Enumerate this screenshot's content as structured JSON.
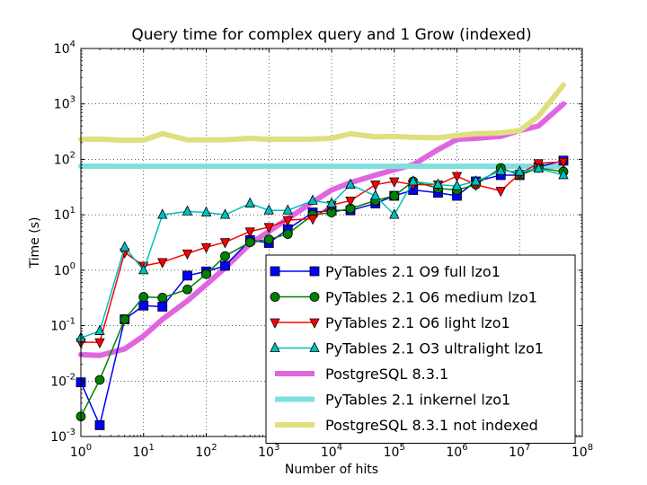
{
  "chart_data": {
    "type": "line",
    "title": "Query time for complex query and 1 Grow (indexed)",
    "xlabel": "Number of hits",
    "ylabel": "Time (s)",
    "xscale": "log",
    "yscale": "log",
    "xlim": [
      1,
      100000000
    ],
    "ylim": [
      0.001,
      10000
    ],
    "grid": true,
    "legend_position": "lower-right",
    "x_ticks": [
      {
        "value": 1,
        "base": "10",
        "exp": "0"
      },
      {
        "value": 10,
        "base": "10",
        "exp": "1"
      },
      {
        "value": 100,
        "base": "10",
        "exp": "2"
      },
      {
        "value": 1000,
        "base": "10",
        "exp": "3"
      },
      {
        "value": 10000,
        "base": "10",
        "exp": "4"
      },
      {
        "value": 100000,
        "base": "10",
        "exp": "5"
      },
      {
        "value": 1000000,
        "base": "10",
        "exp": "6"
      },
      {
        "value": 10000000,
        "base": "10",
        "exp": "7"
      },
      {
        "value": 100000000,
        "base": "10",
        "exp": "8"
      }
    ],
    "y_ticks": [
      {
        "value": 0.001,
        "base": "10",
        "exp": "-3"
      },
      {
        "value": 0.01,
        "base": "10",
        "exp": "-2"
      },
      {
        "value": 0.1,
        "base": "10",
        "exp": "-1"
      },
      {
        "value": 1,
        "base": "10",
        "exp": "0"
      },
      {
        "value": 10,
        "base": "10",
        "exp": "1"
      },
      {
        "value": 100,
        "base": "10",
        "exp": "2"
      },
      {
        "value": 1000,
        "base": "10",
        "exp": "3"
      },
      {
        "value": 10000,
        "base": "10",
        "exp": "4"
      }
    ],
    "series": [
      {
        "name": "PyTables 2.1 O9 full lzo1",
        "color": "#0000ff",
        "marker": "square",
        "line_width": 1.5,
        "x": [
          1,
          2,
          5,
          10,
          20,
          50,
          100,
          200,
          500,
          1000,
          2000,
          5000,
          10000,
          20000,
          50000,
          100000,
          200000,
          500000,
          1000000,
          2000000,
          5000000,
          10000000,
          20000000,
          50000000
        ],
        "y": [
          0.0095,
          0.0016,
          0.13,
          0.23,
          0.22,
          0.8,
          0.95,
          1.2,
          3.5,
          3.1,
          5.5,
          11,
          12,
          12,
          16,
          22,
          28,
          25,
          22,
          40,
          52,
          52,
          73,
          95
        ]
      },
      {
        "name": "PyTables 2.1 O6 medium lzo1",
        "color": "#008000",
        "marker": "circle",
        "line_width": 1.5,
        "x": [
          1,
          2,
          5,
          10,
          20,
          50,
          100,
          200,
          500,
          1000,
          2000,
          5000,
          10000,
          20000,
          50000,
          100000,
          200000,
          500000,
          1000000,
          2000000,
          5000000,
          10000000,
          20000000,
          50000000
        ],
        "y": [
          0.0023,
          0.0105,
          0.13,
          0.33,
          0.32,
          0.45,
          0.85,
          1.8,
          3.2,
          3.6,
          4.5,
          10,
          11,
          13,
          18,
          22,
          40,
          30,
          28,
          35,
          70,
          52,
          70,
          60
        ]
      },
      {
        "name": "PyTables 2.1 O6 light lzo1",
        "color": "#ff0000",
        "marker": "triangle-down",
        "line_width": 1.5,
        "x": [
          1,
          2,
          5,
          10,
          20,
          50,
          100,
          200,
          500,
          1000,
          2000,
          5000,
          10000,
          20000,
          50000,
          100000,
          200000,
          500000,
          1000000,
          2000000,
          5000000,
          10000000,
          20000000,
          50000000
        ],
        "y": [
          0.05,
          0.05,
          2.1,
          1.2,
          1.4,
          2.0,
          2.6,
          3.2,
          5.0,
          6.0,
          8.0,
          8.5,
          15,
          18,
          35,
          40,
          35,
          35,
          50,
          35,
          27,
          55,
          85,
          90
        ]
      },
      {
        "name": "PyTables 2.1 O3 ultralight lzo1",
        "color": "#00bfbf",
        "marker": "triangle-up",
        "line_width": 1.5,
        "x": [
          1,
          2,
          5,
          10,
          20,
          50,
          100,
          200,
          500,
          1000,
          2000,
          5000,
          10000,
          20000,
          50000,
          100000,
          200000,
          500000,
          1000000,
          2000000,
          5000000,
          10000000,
          20000000,
          50000000
        ],
        "y": [
          0.06,
          0.08,
          2.6,
          1.0,
          10,
          11.5,
          11,
          10,
          16,
          12,
          12,
          18,
          16,
          35,
          22,
          10,
          40,
          35,
          33,
          40,
          62,
          60,
          68,
          52
        ]
      },
      {
        "name": "PostgreSQL 8.3.1",
        "color": "#e066e0",
        "marker": "none",
        "line_width": 6,
        "x": [
          1,
          2,
          5,
          10,
          20,
          50,
          100,
          200,
          500,
          1000,
          2000,
          5000,
          10000,
          20000,
          50000,
          100000,
          200000,
          500000,
          1000000,
          2000000,
          5000000,
          10000000,
          20000000,
          50000000
        ],
        "y": [
          0.03,
          0.029,
          0.038,
          0.065,
          0.13,
          0.28,
          0.55,
          1.1,
          3.0,
          5.0,
          8.5,
          17,
          28,
          38,
          52,
          65,
          80,
          150,
          230,
          240,
          260,
          330,
          400,
          1000
        ]
      },
      {
        "name": "PyTables 2.1 inkernel lzo1",
        "color": "#7fdfdf",
        "marker": "none",
        "line_width": 6,
        "x": [
          1,
          50000000
        ],
        "y": [
          75,
          75
        ]
      },
      {
        "name": "PostgreSQL 8.3.1 not indexed",
        "color": "#dfdf7f",
        "marker": "none",
        "line_width": 6,
        "x": [
          1,
          2,
          5,
          10,
          20,
          50,
          100,
          200,
          500,
          1000,
          2000,
          5000,
          10000,
          20000,
          50000,
          100000,
          200000,
          500000,
          1000000,
          2000000,
          5000000,
          10000000,
          20000000,
          50000000
        ],
        "y": [
          230,
          232,
          220,
          222,
          290,
          225,
          225,
          225,
          240,
          230,
          230,
          232,
          240,
          290,
          255,
          260,
          250,
          245,
          270,
          290,
          300,
          330,
          600,
          2200
        ]
      }
    ]
  }
}
